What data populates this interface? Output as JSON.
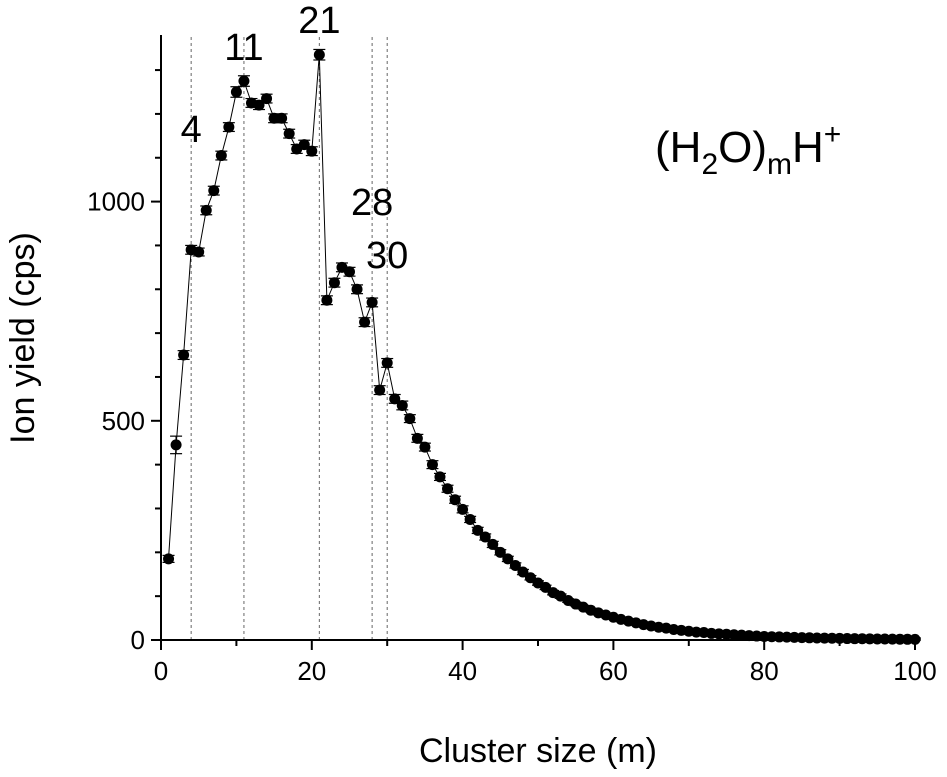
{
  "chart_data": {
    "type": "scatter",
    "title": "",
    "xlabel": "Cluster size (m)",
    "ylabel": "Ion yield (cps)",
    "xlim": [
      0,
      100
    ],
    "ylim": [
      0,
      1380
    ],
    "x_ticks": [
      0,
      20,
      40,
      60,
      80,
      100
    ],
    "y_ticks": [
      0,
      500,
      1000
    ],
    "formula": {
      "base1": "(H",
      "sub1": "2",
      "base2": "O)",
      "sub2": "m",
      "base3": "H",
      "sup": "+"
    },
    "magic_numbers": [
      {
        "x": 4,
        "label": "4"
      },
      {
        "x": 11,
        "label": "11"
      },
      {
        "x": 21,
        "label": "21"
      },
      {
        "x": 28,
        "label": "28"
      },
      {
        "x": 30,
        "label": "30"
      }
    ],
    "series": [
      {
        "marker_color": "#000000",
        "x": [
          1,
          2,
          3,
          4,
          5,
          6,
          7,
          8,
          9,
          10,
          11,
          12,
          13,
          14,
          15,
          16,
          17,
          18,
          19,
          20,
          21,
          22,
          23,
          24,
          25,
          26,
          27,
          28,
          29,
          30,
          31,
          32,
          33,
          34,
          35,
          36,
          37,
          38,
          39,
          40,
          41,
          42,
          43,
          44,
          45,
          46,
          47,
          48,
          49,
          50,
          51,
          52,
          53,
          54,
          55,
          56,
          57,
          58,
          59,
          60,
          61,
          62,
          63,
          64,
          65,
          66,
          67,
          68,
          69,
          70,
          71,
          72,
          73,
          74,
          75,
          76,
          77,
          78,
          79,
          80,
          81,
          82,
          83,
          84,
          85,
          86,
          87,
          88,
          89,
          90,
          91,
          92,
          93,
          94,
          95,
          96,
          97,
          98,
          99,
          100
        ],
        "y": [
          185,
          445,
          650,
          890,
          885,
          980,
          1025,
          1105,
          1170,
          1250,
          1275,
          1225,
          1220,
          1235,
          1190,
          1190,
          1155,
          1120,
          1130,
          1115,
          1335,
          775,
          815,
          850,
          840,
          800,
          725,
          770,
          570,
          632,
          550,
          535,
          505,
          460,
          440,
          400,
          372,
          345,
          320,
          298,
          275,
          250,
          235,
          218,
          200,
          185,
          170,
          155,
          142,
          130,
          120,
          108,
          100,
          90,
          82,
          75,
          68,
          62,
          57,
          52,
          47,
          43,
          39,
          35,
          32,
          29,
          27,
          24,
          22,
          20,
          18,
          17,
          15,
          14,
          13,
          12,
          11,
          10,
          9,
          8,
          7.5,
          7,
          6.5,
          6,
          5.5,
          5,
          4.6,
          4.2,
          3.9,
          3.6,
          3.3,
          3.0,
          2.8,
          2.6,
          2.4,
          2.2,
          2.0,
          1.8,
          1.6,
          1.5
        ],
        "err": [
          8,
          20,
          10,
          10,
          9,
          10,
          10,
          10,
          10,
          12,
          12,
          10,
          10,
          10,
          10,
          10,
          10,
          10,
          10,
          10,
          12,
          10,
          10,
          10,
          10,
          10,
          10,
          10,
          10,
          10,
          10,
          10,
          9,
          9,
          9,
          9,
          8,
          8,
          8,
          8,
          7,
          7,
          7,
          7,
          6,
          6,
          6,
          6,
          5,
          5,
          5,
          5,
          5,
          4,
          4,
          4,
          4,
          4,
          4,
          3,
          3,
          3,
          3,
          3,
          3,
          3,
          3,
          3,
          3,
          3,
          3,
          3,
          3,
          3,
          3,
          3,
          3,
          3,
          3,
          3,
          3,
          3,
          3,
          3,
          3,
          3,
          3,
          3,
          3,
          3,
          3,
          3,
          3,
          3,
          3,
          3,
          3,
          3,
          3,
          3
        ]
      }
    ]
  }
}
